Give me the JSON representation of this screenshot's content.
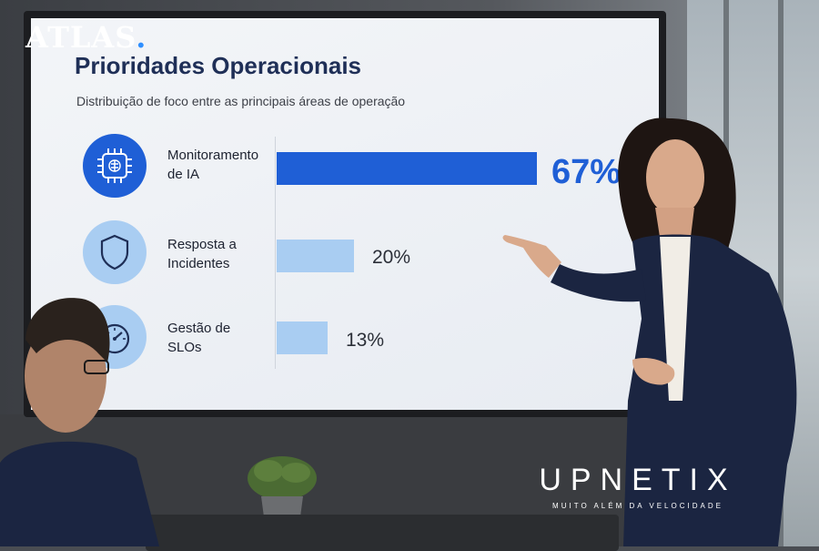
{
  "watermark": {
    "brand": "ATLAS",
    "dot": "."
  },
  "corner_logo": {
    "brand": "UPNETIX",
    "tagline": "MUITO ALÉM DA VELOCIDADE"
  },
  "slide": {
    "title": "Prioridades Operacionais",
    "subtitle": "Distribuição de foco entre as principais áreas de operação"
  },
  "chart_data": {
    "type": "bar",
    "orientation": "horizontal",
    "title": "Prioridades Operacionais",
    "subtitle": "Distribuição de foco entre as principais áreas de operação",
    "categories": [
      "Monitoramento de IA",
      "Resposta a Incidentes",
      "Gestão de SLOs"
    ],
    "category_lines": [
      [
        "Monitoramento",
        "de IA"
      ],
      [
        "Resposta a",
        "Incidentes"
      ],
      [
        "Gestão de",
        "SLOs"
      ]
    ],
    "values": [
      67,
      20,
      13
    ],
    "value_labels": [
      "67%",
      "20%",
      "13%"
    ],
    "unit": "%",
    "xlim": [
      0,
      100
    ],
    "icons": [
      "ai-chip-brain-icon",
      "shield-icon",
      "gauge-icon"
    ],
    "colors": [
      "#1f5fd6",
      "#a9cdf2",
      "#a9cdf2"
    ],
    "icon_bg": [
      "#1f5fd6",
      "#a9cdf2",
      "#a9cdf2"
    ],
    "grid": false,
    "legend": "none"
  }
}
